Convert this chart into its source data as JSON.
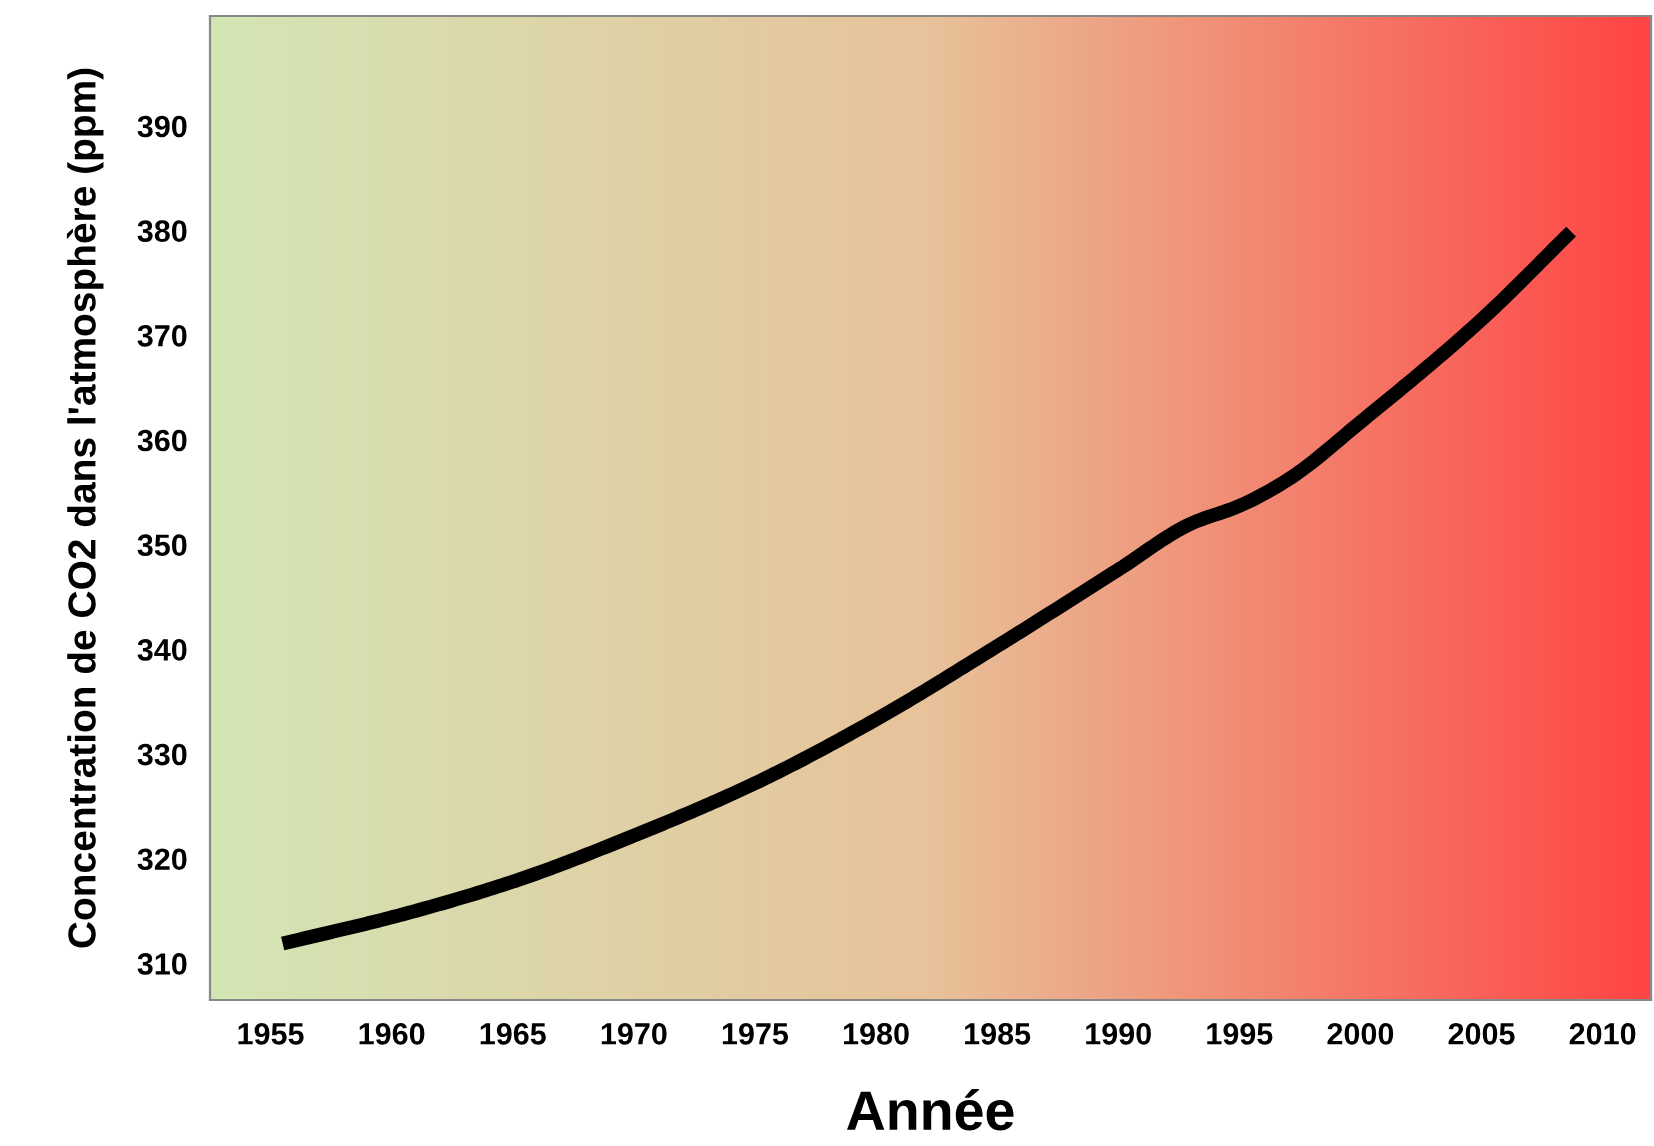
{
  "chart_data": {
    "type": "line",
    "xlabel": "Année",
    "ylabel": "Concentration de CO2 dans l'atmosphère (ppm)",
    "series": [
      {
        "color": "#000000",
        "x": [
          1955.5,
          1960,
          1965,
          1970,
          1975,
          1980,
          1985,
          1990,
          1993,
          1995,
          1997,
          2000,
          2005,
          2008.7
        ],
        "values": [
          311.9,
          314.4,
          317.8,
          322.2,
          327.2,
          333.3,
          340.3,
          347.6,
          352,
          353.7,
          356.2,
          361.7,
          371.5,
          379.9
        ]
      }
    ],
    "xlim": [
      1952.5,
      2012
    ],
    "xticks": [
      1955,
      1960,
      1965,
      1970,
      1975,
      1980,
      1985,
      1990,
      1995,
      2000,
      2005,
      2010
    ],
    "ylim": [
      306.5,
      400.5
    ],
    "yticks": [
      310,
      320,
      330,
      340,
      350,
      360,
      370,
      380,
      390
    ],
    "grid": false,
    "legend": false,
    "marker": "none",
    "line_style": "solid"
  }
}
